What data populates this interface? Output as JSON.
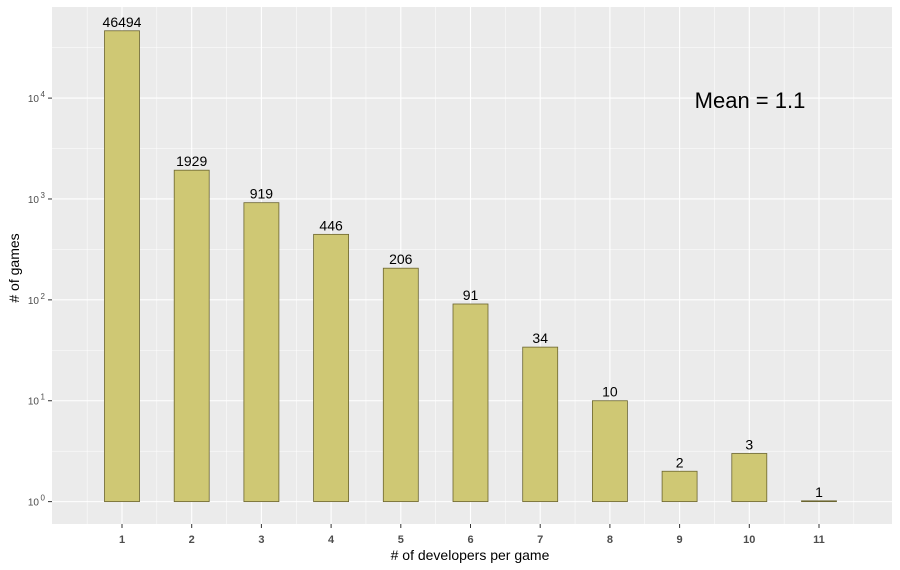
{
  "chart_data": {
    "type": "bar",
    "categories": [
      "1",
      "2",
      "3",
      "4",
      "5",
      "6",
      "7",
      "8",
      "9",
      "10",
      "11"
    ],
    "values": [
      46494,
      1929,
      919,
      446,
      206,
      91,
      34,
      10,
      2,
      3,
      1
    ],
    "data_labels": [
      "46494",
      "1929",
      "919",
      "446",
      "206",
      "91",
      "34",
      "10",
      "2",
      "3",
      "1"
    ],
    "xlabel": "# of developers per game",
    "ylabel": "# of games",
    "y_scale": "log10",
    "ylim": [
      0.6,
      80000
    ],
    "y_ticks": [
      {
        "value": 1,
        "base": "10",
        "exp": "0"
      },
      {
        "value": 10,
        "base": "10",
        "exp": "1"
      },
      {
        "value": 100,
        "base": "10",
        "exp": "2"
      },
      {
        "value": 1000,
        "base": "10",
        "exp": "3"
      },
      {
        "value": 10000,
        "base": "10",
        "exp": "4"
      }
    ],
    "annotation": "Mean = 1.1",
    "grid": true,
    "colors": {
      "panel_background": "#ebebeb",
      "grid_major": "#ffffff",
      "bar_fill": "#cfc874",
      "bar_stroke": "#6b6530"
    }
  }
}
